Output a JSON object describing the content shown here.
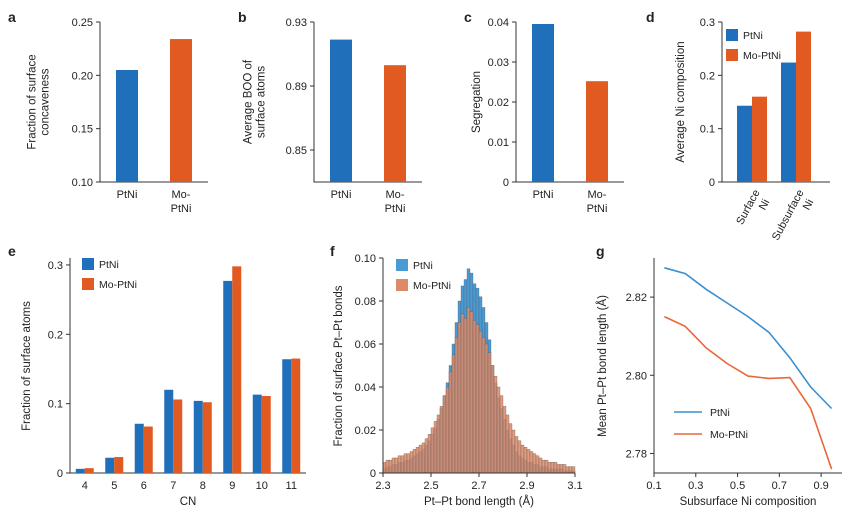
{
  "colors": {
    "ptni": "#1f6fba",
    "mo": "#e05a22",
    "hist_ptni": "#4a9ad4",
    "hist_mo": "#dd8a67",
    "line_ptni": "#3a8fd0",
    "line_mo": "#e8673a"
  },
  "chart_data": [
    {
      "panel": "a",
      "type": "bar",
      "categories": [
        "PtNi",
        "Mo-\nPtNi"
      ],
      "values": [
        0.205,
        0.234
      ],
      "ylabel": "Fraction of surface\nconcaveness",
      "ylim": [
        0.1,
        0.25
      ],
      "yticks": [
        0.1,
        0.15,
        0.2,
        0.25
      ],
      "ytick_labels": [
        "0.10",
        "0.15",
        "0.20",
        "0.25"
      ]
    },
    {
      "panel": "b",
      "type": "bar",
      "categories": [
        "PtNi",
        "Mo-\nPtNi"
      ],
      "values": [
        0.919,
        0.903
      ],
      "ylabel": "Average BOO of\nsurface atoms",
      "ylim": [
        0.83,
        0.93
      ],
      "yticks": [
        0.85,
        0.89,
        0.93
      ],
      "ytick_labels": [
        "0.85",
        "0.89",
        "0.93"
      ]
    },
    {
      "panel": "c",
      "type": "bar",
      "categories": [
        "PtNi",
        "Mo-\nPtNi"
      ],
      "values": [
        0.0395,
        0.0252
      ],
      "ylabel": "Segregation",
      "ylim": [
        0,
        0.04
      ],
      "yticks": [
        0,
        0.01,
        0.02,
        0.03,
        0.04
      ],
      "ytick_labels": [
        "0",
        "0.01",
        "0.02",
        "0.03",
        "0.04"
      ]
    },
    {
      "panel": "d",
      "type": "bar",
      "categories": [
        "Surface\nNi",
        "Subsurface\nNi"
      ],
      "series": [
        {
          "name": "PtNi",
          "values": [
            0.143,
            0.224
          ]
        },
        {
          "name": "Mo-PtNi",
          "values": [
            0.16,
            0.282
          ]
        }
      ],
      "ylabel": "Average Ni composition",
      "ylim": [
        0,
        0.3
      ],
      "yticks": [
        0,
        0.1,
        0.2,
        0.3
      ],
      "ytick_labels": [
        "0",
        "0.1",
        "0.2",
        "0.3"
      ],
      "legend": "top-left"
    },
    {
      "panel": "e",
      "type": "bar",
      "categories": [
        "4",
        "5",
        "6",
        "7",
        "8",
        "9",
        "10",
        "11"
      ],
      "series": [
        {
          "name": "PtNi",
          "values": [
            0.006,
            0.022,
            0.071,
            0.12,
            0.104,
            0.277,
            0.113,
            0.164
          ]
        },
        {
          "name": "Mo-PtNi",
          "values": [
            0.007,
            0.023,
            0.067,
            0.106,
            0.102,
            0.298,
            0.111,
            0.165
          ]
        }
      ],
      "xlabel": "CN",
      "ylabel": "Fraction of surface atoms",
      "ylim": [
        0,
        0.31
      ],
      "yticks": [
        0,
        0.1,
        0.2,
        0.3
      ],
      "ytick_labels": [
        "0",
        "0.1",
        "0.2",
        "0.3"
      ],
      "legend": "top-left"
    },
    {
      "panel": "f",
      "type": "bar",
      "subtype": "histogram",
      "bin_edges_start": 2.3,
      "bin_width": 0.0125,
      "series": [
        {
          "name": "PtNi",
          "values": [
            0.002,
            0.003,
            0.003,
            0.004,
            0.004,
            0.005,
            0.005,
            0.006,
            0.006,
            0.007,
            0.008,
            0.009,
            0.01,
            0.011,
            0.013,
            0.015,
            0.018,
            0.021,
            0.025,
            0.03,
            0.036,
            0.042,
            0.05,
            0.06,
            0.07,
            0.08,
            0.087,
            0.09,
            0.095,
            0.093,
            0.088,
            0.086,
            0.082,
            0.077,
            0.07,
            0.062,
            0.05,
            0.042,
            0.035,
            0.03,
            0.025,
            0.02,
            0.016,
            0.013,
            0.01,
            0.008,
            0.007,
            0.006,
            0.005,
            0.005,
            0.004,
            0.004,
            0.003,
            0.003,
            0.003,
            0.002,
            0.002,
            0.002,
            0.002,
            0.002,
            0.001,
            0.001,
            0.001,
            0.001
          ]
        },
        {
          "name": "Mo-PtNi",
          "values": [
            0.005,
            0.006,
            0.006,
            0.007,
            0.007,
            0.008,
            0.008,
            0.009,
            0.009,
            0.01,
            0.011,
            0.012,
            0.013,
            0.014,
            0.016,
            0.018,
            0.021,
            0.024,
            0.027,
            0.031,
            0.036,
            0.04,
            0.047,
            0.055,
            0.063,
            0.07,
            0.074,
            0.072,
            0.077,
            0.075,
            0.071,
            0.069,
            0.066,
            0.063,
            0.06,
            0.056,
            0.05,
            0.045,
            0.04,
            0.036,
            0.031,
            0.027,
            0.023,
            0.02,
            0.017,
            0.015,
            0.013,
            0.012,
            0.011,
            0.01,
            0.009,
            0.008,
            0.007,
            0.006,
            0.006,
            0.005,
            0.005,
            0.005,
            0.004,
            0.004,
            0.004,
            0.003,
            0.003,
            0.003
          ]
        }
      ],
      "xlabel": "Pt–Pt bond length (Å)",
      "ylabel": "Fraction of surface Pt–Pt bonds",
      "xlim": [
        2.3,
        3.1
      ],
      "ylim": [
        0,
        0.1
      ],
      "xticks": [
        2.3,
        2.5,
        2.7,
        2.9,
        3.1
      ],
      "xtick_labels": [
        "2.3",
        "2.5",
        "2.7",
        "2.9",
        "3.1"
      ],
      "yticks": [
        0,
        0.02,
        0.04,
        0.06,
        0.08,
        0.1
      ],
      "ytick_labels": [
        "0",
        "0.02",
        "0.04",
        "0.06",
        "0.08",
        "0.10"
      ],
      "legend": "top-left"
    },
    {
      "panel": "g",
      "type": "line",
      "series": [
        {
          "name": "PtNi",
          "x": [
            0.15,
            0.25,
            0.35,
            0.45,
            0.55,
            0.65,
            0.75,
            0.85,
            0.95
          ],
          "y": [
            2.8275,
            2.826,
            2.822,
            2.8185,
            2.815,
            2.811,
            2.8045,
            2.797,
            2.7915
          ]
        },
        {
          "name": "Mo-PtNi",
          "x": [
            0.15,
            0.25,
            0.35,
            0.45,
            0.55,
            0.65,
            0.75,
            0.85,
            0.95
          ],
          "y": [
            2.815,
            2.8125,
            2.807,
            2.803,
            2.7998,
            2.7992,
            2.7994,
            2.7915,
            2.776
          ]
        }
      ],
      "xlabel": "Subsurface Ni composition",
      "ylabel": "Mean Pt–Pt bond length (Å)",
      "xlim": [
        0.1,
        1.0
      ],
      "ylim": [
        2.775,
        2.83
      ],
      "xticks": [
        0.1,
        0.3,
        0.5,
        0.7,
        0.9
      ],
      "xtick_labels": [
        "0.1",
        "0.3",
        "0.5",
        "0.7",
        "0.9"
      ],
      "yticks": [
        2.78,
        2.8,
        2.82
      ],
      "ytick_labels": [
        "2.78",
        "2.80",
        "2.82"
      ],
      "legend": "lower-left"
    }
  ]
}
